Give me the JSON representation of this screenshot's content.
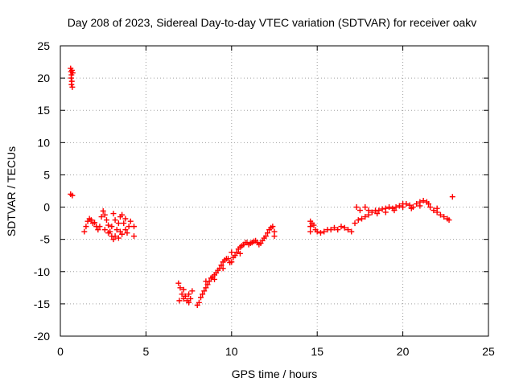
{
  "chart_data": {
    "type": "scatter",
    "title": "Day 208 of 2023, Sidereal Day-to-day VTEC variation (SDTVAR) for receiver oakv",
    "xlabel": "GPS time / hours",
    "ylabel": "SDTVAR / TECUs",
    "xlim": [
      0,
      25
    ],
    "ylim": [
      -20,
      25
    ],
    "xticks": [
      0,
      5,
      10,
      15,
      20,
      25
    ],
    "yticks": [
      -20,
      -15,
      -10,
      -5,
      0,
      5,
      10,
      15,
      20,
      25
    ],
    "xtick_labels": [
      "0",
      "5",
      "10",
      "15",
      "20",
      "25"
    ],
    "ytick_labels": [
      "-20",
      "-15",
      "-10",
      "-5",
      "0",
      "5",
      "10",
      "15",
      "20",
      "25"
    ],
    "grid": true,
    "marker": "plus",
    "color": "#ff0000",
    "series": [
      {
        "name": "SDTVAR",
        "points": [
          [
            0.6,
            21.5
          ],
          [
            0.62,
            21.0
          ],
          [
            0.65,
            20.5
          ],
          [
            0.63,
            20.0
          ],
          [
            0.67,
            19.5
          ],
          [
            0.65,
            19.0
          ],
          [
            0.7,
            18.6
          ],
          [
            0.72,
            20.8
          ],
          [
            0.68,
            21.2
          ],
          [
            0.6,
            2.0
          ],
          [
            0.7,
            1.8
          ],
          [
            1.4,
            -3.8
          ],
          [
            1.5,
            -3.0
          ],
          [
            1.6,
            -2.2
          ],
          [
            1.7,
            -1.8
          ],
          [
            1.8,
            -2.0
          ],
          [
            1.9,
            -2.5
          ],
          [
            2.0,
            -2.4
          ],
          [
            2.1,
            -3.0
          ],
          [
            2.2,
            -3.5
          ],
          [
            2.3,
            -3.0
          ],
          [
            2.4,
            -1.5
          ],
          [
            2.5,
            -0.6
          ],
          [
            2.6,
            -1.2
          ],
          [
            2.7,
            -2.0
          ],
          [
            2.8,
            -2.8
          ],
          [
            2.9,
            -3.8
          ],
          [
            3.0,
            -4.5
          ],
          [
            3.1,
            -5.0
          ],
          [
            3.2,
            -4.5
          ],
          [
            3.3,
            -3.5
          ],
          [
            3.4,
            -2.5
          ],
          [
            3.5,
            -1.5
          ],
          [
            3.6,
            -1.2
          ],
          [
            3.7,
            -2.5
          ],
          [
            3.8,
            -3.5
          ],
          [
            3.9,
            -4.0
          ],
          [
            4.0,
            -3.0
          ],
          [
            4.1,
            -2.2
          ],
          [
            4.3,
            -3.0
          ],
          [
            4.3,
            -4.5
          ],
          [
            2.6,
            -3.5
          ],
          [
            2.8,
            -4.0
          ],
          [
            3.0,
            -3.0
          ],
          [
            3.2,
            -2.0
          ],
          [
            3.4,
            -4.8
          ],
          [
            3.6,
            -4.2
          ],
          [
            3.8,
            -1.8
          ],
          [
            3.1,
            -1.0
          ],
          [
            3.5,
            -3.8
          ],
          [
            6.9,
            -11.8
          ],
          [
            7.0,
            -12.5
          ],
          [
            7.1,
            -13.5
          ],
          [
            7.2,
            -14.2
          ],
          [
            7.3,
            -13.8
          ],
          [
            7.4,
            -14.5
          ],
          [
            7.5,
            -13.5
          ],
          [
            7.6,
            -14.2
          ],
          [
            7.7,
            -13.0
          ],
          [
            6.95,
            -14.5
          ],
          [
            7.2,
            -12.8
          ],
          [
            7.5,
            -14.8
          ],
          [
            8.0,
            -15.2
          ],
          [
            8.1,
            -14.8
          ],
          [
            8.2,
            -14.0
          ],
          [
            8.3,
            -13.5
          ],
          [
            8.4,
            -13.0
          ],
          [
            8.5,
            -12.5
          ],
          [
            8.6,
            -12.0
          ],
          [
            8.7,
            -11.5
          ],
          [
            8.8,
            -11.0
          ],
          [
            8.9,
            -10.8
          ],
          [
            9.0,
            -10.5
          ],
          [
            9.1,
            -10.2
          ],
          [
            9.2,
            -9.8
          ],
          [
            9.3,
            -9.5
          ],
          [
            9.4,
            -9.0
          ],
          [
            9.5,
            -8.5
          ],
          [
            9.6,
            -8.2
          ],
          [
            9.7,
            -8.0
          ],
          [
            9.8,
            -8.0
          ],
          [
            9.9,
            -8.6
          ],
          [
            10.0,
            -8.5
          ],
          [
            10.1,
            -7.8
          ],
          [
            10.2,
            -7.5
          ],
          [
            10.3,
            -7.0
          ],
          [
            10.4,
            -6.5
          ],
          [
            10.5,
            -6.2
          ],
          [
            10.6,
            -6.0
          ],
          [
            10.7,
            -5.8
          ],
          [
            10.8,
            -5.5
          ],
          [
            10.9,
            -5.5
          ],
          [
            11.0,
            -5.8
          ],
          [
            11.1,
            -5.6
          ],
          [
            11.2,
            -5.5
          ],
          [
            11.3,
            -5.3
          ],
          [
            11.4,
            -5.2
          ],
          [
            11.5,
            -5.5
          ],
          [
            11.6,
            -5.8
          ],
          [
            11.7,
            -5.6
          ],
          [
            11.8,
            -5.2
          ],
          [
            11.9,
            -4.8
          ],
          [
            12.0,
            -4.5
          ],
          [
            12.1,
            -4.0
          ],
          [
            12.2,
            -3.5
          ],
          [
            12.3,
            -3.2
          ],
          [
            12.4,
            -3.0
          ],
          [
            12.5,
            -3.8
          ],
          [
            12.5,
            -4.5
          ],
          [
            9.5,
            -9.5
          ],
          [
            10.0,
            -7.0
          ],
          [
            10.5,
            -7.2
          ],
          [
            8.5,
            -11.5
          ],
          [
            9.0,
            -11.2
          ],
          [
            14.6,
            -2.2
          ],
          [
            14.6,
            -3.0
          ],
          [
            14.6,
            -3.8
          ],
          [
            14.7,
            -2.5
          ],
          [
            14.8,
            -2.8
          ],
          [
            14.9,
            -3.5
          ],
          [
            15.0,
            -3.8
          ],
          [
            15.2,
            -4.0
          ],
          [
            15.4,
            -3.8
          ],
          [
            15.6,
            -3.5
          ],
          [
            15.8,
            -3.5
          ],
          [
            16.0,
            -3.2
          ],
          [
            16.2,
            -3.5
          ],
          [
            16.4,
            -3.0
          ],
          [
            16.6,
            -3.2
          ],
          [
            16.8,
            -3.5
          ],
          [
            17.0,
            -3.8
          ],
          [
            17.2,
            -2.5
          ],
          [
            17.4,
            -2.0
          ],
          [
            17.6,
            -1.8
          ],
          [
            17.8,
            -1.5
          ],
          [
            18.0,
            -1.2
          ],
          [
            18.2,
            -0.8
          ],
          [
            18.4,
            -0.5
          ],
          [
            18.6,
            -0.5
          ],
          [
            18.8,
            -0.3
          ],
          [
            19.0,
            -0.2
          ],
          [
            19.2,
            0.0
          ],
          [
            19.4,
            -0.2
          ],
          [
            19.6,
            0.0
          ],
          [
            19.8,
            0.2
          ],
          [
            20.0,
            0.5
          ],
          [
            20.2,
            0.5
          ],
          [
            20.4,
            0.3
          ],
          [
            20.6,
            0.0
          ],
          [
            20.8,
            0.5
          ],
          [
            21.0,
            0.8
          ],
          [
            21.2,
            1.0
          ],
          [
            21.4,
            0.8
          ],
          [
            21.6,
            0.0
          ],
          [
            21.8,
            -0.5
          ],
          [
            22.0,
            -0.8
          ],
          [
            22.2,
            -1.2
          ],
          [
            22.4,
            -1.5
          ],
          [
            22.6,
            -1.8
          ],
          [
            22.7,
            -2.0
          ],
          [
            22.9,
            1.6
          ],
          [
            17.3,
            0.0
          ],
          [
            17.5,
            -0.5
          ],
          [
            17.8,
            0.0
          ],
          [
            18.0,
            -0.5
          ],
          [
            18.5,
            -1.0
          ],
          [
            19.0,
            -0.8
          ],
          [
            19.5,
            -0.5
          ],
          [
            20.0,
            0.0
          ],
          [
            20.5,
            -0.2
          ],
          [
            21.0,
            0.2
          ],
          [
            21.5,
            0.5
          ],
          [
            22.0,
            -0.2
          ]
        ]
      }
    ]
  }
}
